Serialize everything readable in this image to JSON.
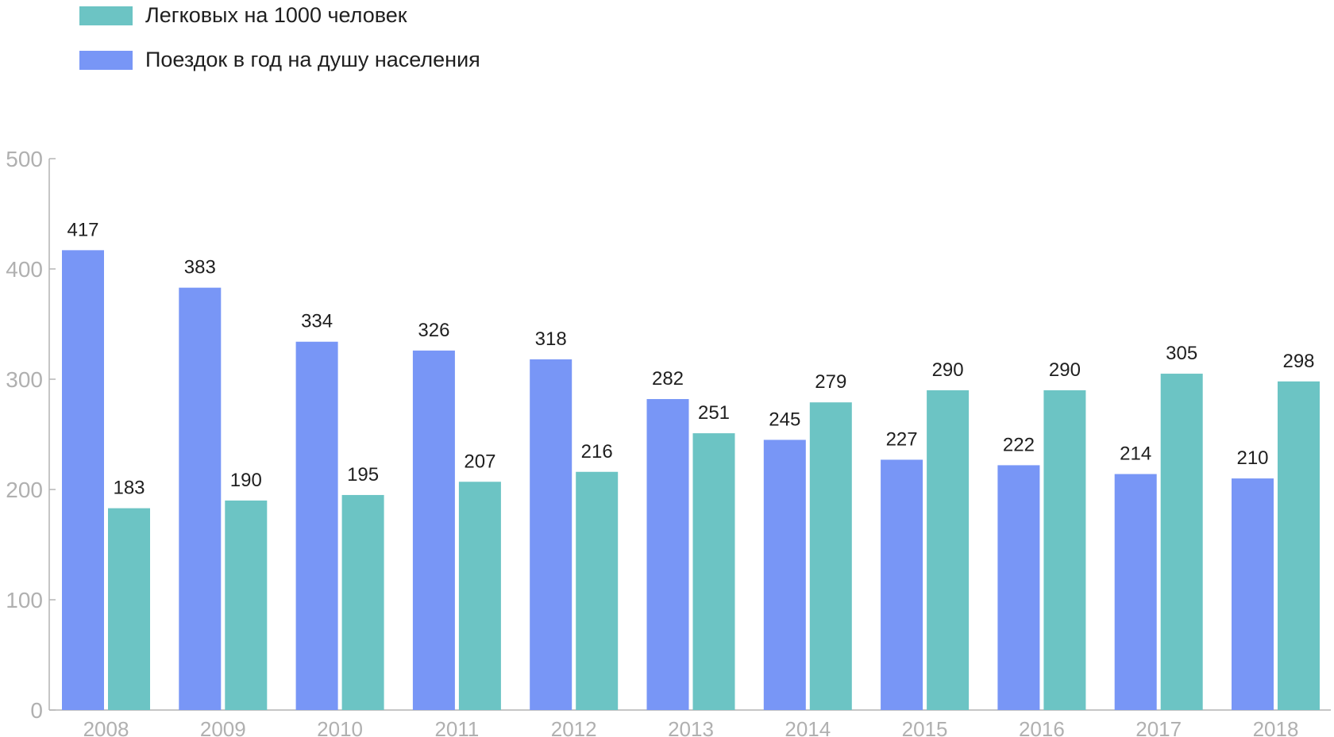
{
  "legend": [
    {
      "label": "Легковых на 1000 человек",
      "color": "#6cc4c4"
    },
    {
      "label": "Поездок в год на душу населения",
      "color": "#7896f6"
    }
  ],
  "chart_data": {
    "type": "bar",
    "categories": [
      "2008",
      "2009",
      "2010",
      "2011",
      "2012",
      "2013",
      "2014",
      "2015",
      "2016",
      "2017",
      "2018"
    ],
    "series": [
      {
        "name": "Поездок в год на душу населения",
        "color": "#7896f6",
        "values": [
          417,
          383,
          334,
          326,
          318,
          282,
          245,
          227,
          222,
          214,
          210
        ]
      },
      {
        "name": "Легковых на 1000 человек",
        "color": "#6cc4c4",
        "values": [
          183,
          190,
          195,
          207,
          216,
          251,
          279,
          290,
          290,
          305,
          298
        ]
      }
    ],
    "yticks": [
      "0",
      "100",
      "200",
      "300",
      "400",
      "500"
    ],
    "ylim": [
      0,
      500
    ],
    "legend_position": "top-left",
    "grid": false
  }
}
